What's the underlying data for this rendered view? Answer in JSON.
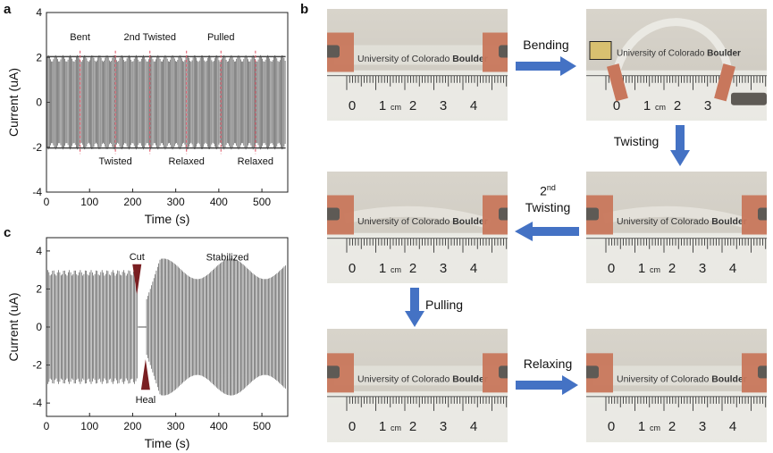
{
  "panels": {
    "a": {
      "letter": "a",
      "chart_data": {
        "type": "line",
        "xlabel": "Time (s)",
        "ylabel": "Current (uA)",
        "xlim": [
          0,
          560
        ],
        "ylim": [
          -4,
          4
        ],
        "xticks": [
          0,
          100,
          200,
          300,
          400,
          500
        ],
        "yticks": [
          -4,
          -2,
          0,
          2,
          4
        ],
        "amplitude_uA": 2.1,
        "event_times_s": [
          78,
          160,
          240,
          325,
          405,
          485
        ],
        "annotations_top": [
          "Bent",
          "2nd Twisted",
          "Pulled"
        ],
        "annotations_bottom": [
          "Twisted",
          "Relaxed",
          "Relaxed"
        ]
      }
    },
    "c": {
      "letter": "c",
      "chart_data": {
        "type": "line",
        "xlabel": "Time (s)",
        "ylabel": "Current (uA)",
        "xlim": [
          0,
          560
        ],
        "ylim": [
          -4.7,
          4.7
        ],
        "xticks": [
          0,
          100,
          200,
          300,
          400,
          500
        ],
        "yticks": [
          -4,
          -2,
          0,
          2,
          4
        ],
        "amplitude_before_uA": 3.0,
        "amplitude_after_uA": 3.6,
        "cut_time_s": 215,
        "heal_time_s": 232,
        "annotations": [
          "Cut",
          "Heal",
          "Stabilized"
        ]
      }
    },
    "b": {
      "letter": "b",
      "photo_caption": "University of Colorado Boulder",
      "photo_caption_bold": "Boulder",
      "photo_caption_plain": "University of Colorado ",
      "ruler_unit": "cm",
      "steps": [
        {
          "label": "Bending"
        },
        {
          "label": "Twisting"
        },
        {
          "label_sup": "nd",
          "label_num": "2",
          "label": "Twisting"
        },
        {
          "label": "Pulling"
        },
        {
          "label": "Relaxing"
        }
      ],
      "photos": [
        {
          "ruler_numbers": [
            "0",
            "1",
            "2",
            "3",
            "4"
          ]
        },
        {
          "ruler_numbers": [
            "0",
            "1",
            "2",
            "3"
          ]
        },
        {
          "ruler_numbers": [
            "0",
            "1",
            "2",
            "3",
            "4"
          ]
        },
        {
          "ruler_numbers": [
            "0",
            "1",
            "2",
            "3",
            "4"
          ]
        },
        {
          "ruler_numbers": [
            "0",
            "1",
            "2",
            "3",
            "4"
          ]
        },
        {
          "ruler_numbers": [
            "0",
            "1",
            "2",
            "3",
            "4"
          ]
        }
      ],
      "colors": {
        "arrow": "#4472c4",
        "tape": "#c8775c",
        "ruler": "#f4f4f2"
      }
    }
  }
}
